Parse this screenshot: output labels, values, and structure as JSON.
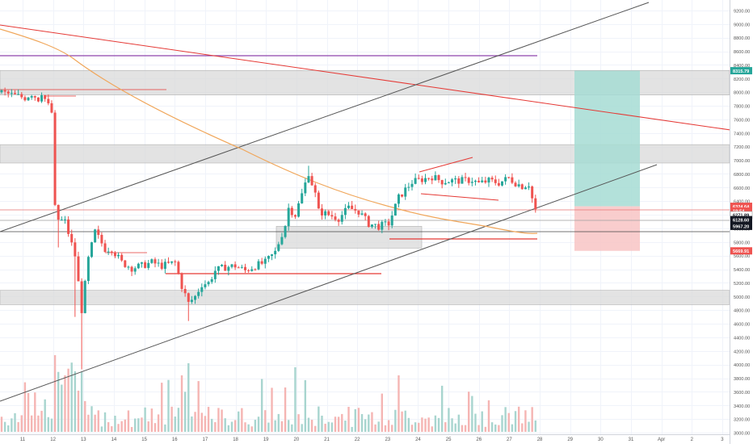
{
  "theme": {
    "background": "#ffffff",
    "grid": "#f0f3fa",
    "candle_up": "#26a69a",
    "candle_down": "#ef5350",
    "volume_up": "#a8d5cf",
    "volume_down": "#f5b5b3",
    "zone_fill": "#d9d9d9",
    "profit_fill": "#a6dcd3",
    "loss_fill": "#f8c4c4",
    "trend_red": "#e53935",
    "trend_black": "#555555",
    "ma_orange": "#f0a65a",
    "purple_line": "#8e44ad",
    "axis_text": "#555555"
  },
  "chart_data": {
    "type": "candlestick",
    "x_tick_labels": [
      "11",
      "12",
      "13",
      "14",
      "15",
      "16",
      "17",
      "18",
      "19",
      "20",
      "21",
      "22",
      "23",
      "24",
      "25",
      "26",
      "27",
      "28",
      "29",
      "30",
      "31",
      "Apr",
      "2",
      "3"
    ],
    "y_tick_labels": [
      "9200.00",
      "9000.00",
      "8800.00",
      "8600.00",
      "8400.00",
      "8200.00",
      "8000.00",
      "7800.00",
      "7600.00",
      "7400.00",
      "7200.00",
      "7000.00",
      "6800.00",
      "6600.00",
      "6400.00",
      "6200.00",
      "6000.00",
      "5800.00",
      "5600.00",
      "5400.00",
      "5200.00",
      "5000.00",
      "4800.00",
      "4600.00",
      "4400.00",
      "4200.00",
      "4000.00",
      "3800.00",
      "3600.00",
      "3400.00",
      "3200.00",
      "3000.00"
    ],
    "price_badges": [
      {
        "label": "8315.79",
        "color": "#26a69a",
        "value": 8315.79
      },
      {
        "label": "6324.64",
        "color": "#ef5350",
        "value": 6324.64
      },
      {
        "label": "19:54",
        "color": "#ef5350",
        "value": 6255
      },
      {
        "label": "6271.89",
        "color": "#ffffff",
        "value": 6195
      },
      {
        "label": "6128.60",
        "color": "#131722",
        "value": 6128.6
      },
      {
        "label": "5967.20",
        "color": "#131722",
        "value": 6030
      },
      {
        "label": "5669.91",
        "color": "#ef5350",
        "value": 5669.91
      }
    ],
    "zones": [
      {
        "from": 7960,
        "to": 8320
      },
      {
        "from": 6960,
        "to": 7230
      },
      {
        "from": 5710,
        "to": 6030
      },
      {
        "from": 4880,
        "to": 5090
      }
    ],
    "position": {
      "entry": 6324.64,
      "target": 8315.79,
      "stop": 5669.91
    },
    "candle_anchors": [
      [
        0,
        8000
      ],
      [
        3,
        7960
      ],
      [
        7,
        7920
      ],
      [
        9,
        7980
      ],
      [
        11,
        7900
      ],
      [
        12,
        8000
      ],
      [
        14,
        7800
      ],
      [
        15,
        7700
      ],
      [
        16,
        6300
      ],
      [
        17,
        6130
      ],
      [
        19,
        6100
      ],
      [
        22,
        5600
      ],
      [
        24,
        4800
      ],
      [
        26,
        5550
      ],
      [
        28,
        5950
      ],
      [
        31,
        5700
      ],
      [
        33,
        5700
      ],
      [
        36,
        5500
      ],
      [
        39,
        5420
      ],
      [
        42,
        5450
      ],
      [
        45,
        5500
      ],
      [
        48,
        5450
      ],
      [
        52,
        5500
      ],
      [
        54,
        5150
      ],
      [
        56,
        4900
      ],
      [
        58,
        5000
      ],
      [
        60,
        5180
      ],
      [
        62,
        5200
      ],
      [
        64,
        5380
      ],
      [
        67,
        5430
      ],
      [
        70,
        5450
      ],
      [
        73,
        5380
      ],
      [
        76,
        5450
      ],
      [
        79,
        5500
      ],
      [
        82,
        5650
      ],
      [
        85,
        6050
      ],
      [
        86,
        6300
      ],
      [
        88,
        6200
      ],
      [
        90,
        6500
      ],
      [
        92,
        6820
      ],
      [
        94,
        6500
      ],
      [
        95,
        6250
      ],
      [
        98,
        6200
      ],
      [
        101,
        6150
      ],
      [
        104,
        6300
      ],
      [
        107,
        6250
      ],
      [
        110,
        6070
      ],
      [
        113,
        6030
      ],
      [
        116,
        6070
      ],
      [
        119,
        6450
      ],
      [
        121,
        6570
      ],
      [
        123,
        6680
      ],
      [
        126,
        6720
      ],
      [
        129,
        6760
      ],
      [
        132,
        6690
      ],
      [
        135,
        6700
      ],
      [
        138,
        6700
      ],
      [
        141,
        6710
      ],
      [
        143,
        6660
      ],
      [
        146,
        6700
      ],
      [
        149,
        6670
      ],
      [
        152,
        6740
      ],
      [
        154,
        6670
      ],
      [
        156,
        6620
      ],
      [
        158,
        6650
      ],
      [
        159,
        6440
      ],
      [
        160,
        6270
      ]
    ]
  }
}
